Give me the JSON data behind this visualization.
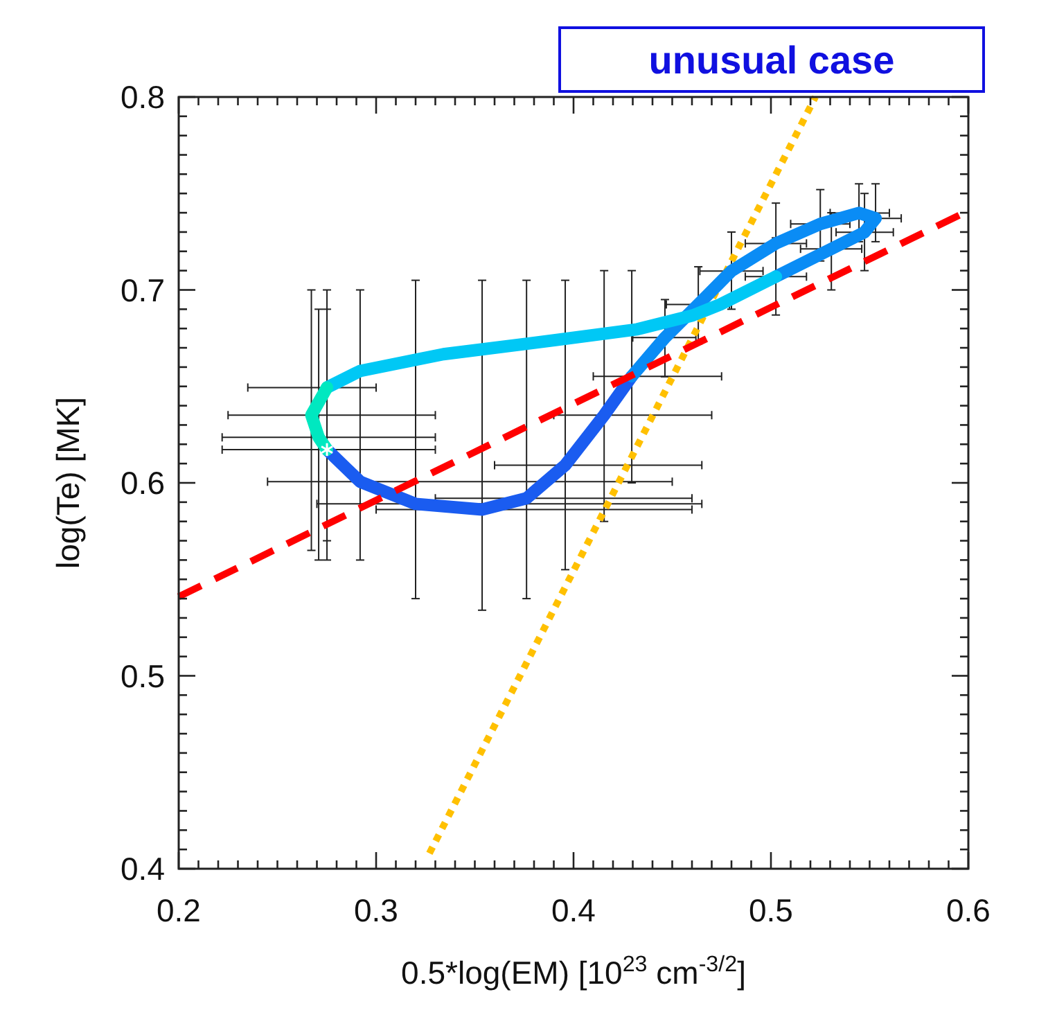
{
  "chart_data": {
    "type": "line",
    "xlabel": "0.5*log(EM) [10$^{23}$ cm$^{-3/2}$]",
    "ylabel": "log(Te) [MK]",
    "annotations": [
      "unusual case"
    ],
    "xlim": [
      0.2,
      0.6
    ],
    "ylim": [
      0.4,
      0.8
    ],
    "xticks": [
      0.2,
      {
        "value": 0.21,
        "label": null
      },
      {
        "value": 0.22,
        "label": null
      },
      {
        "value": 0.23,
        "label": null
      },
      {
        "value": 0.24,
        "label": null
      },
      {
        "value": 0.25,
        "label": null
      },
      {
        "value": 0.26,
        "label": null
      },
      {
        "value": 0.27,
        "label": null
      },
      {
        "value": 0.28,
        "label": null
      },
      {
        "value": 0.29,
        "label": null
      },
      0.3,
      {
        "value": 0.31,
        "label": null
      },
      {
        "value": 0.32,
        "label": null
      },
      {
        "value": 0.33,
        "label": null
      },
      {
        "value": 0.34,
        "label": null
      },
      {
        "value": 0.35,
        "label": null
      },
      {
        "value": 0.36,
        "label": null
      },
      {
        "value": 0.37,
        "label": null
      },
      {
        "value": 0.38,
        "label": null
      },
      {
        "value": 0.39,
        "label": null
      },
      0.4,
      {
        "value": 0.41,
        "label": null
      },
      {
        "value": 0.42,
        "label": null
      },
      {
        "value": 0.43,
        "label": null
      },
      {
        "value": 0.44,
        "label": null
      },
      {
        "value": 0.45,
        "label": null
      },
      {
        "value": 0.46,
        "label": null
      },
      {
        "value": 0.47,
        "label": null
      },
      {
        "value": 0.48,
        "label": null
      },
      {
        "value": 0.49,
        "label": null
      },
      0.5,
      {
        "value": 0.51,
        "label": null
      },
      {
        "value": 0.52,
        "label": null
      },
      {
        "value": 0.53,
        "label": null
      },
      {
        "value": 0.54,
        "label": null
      },
      {
        "value": 0.55,
        "label": null
      },
      {
        "value": 0.56,
        "label": null
      },
      {
        "value": 0.57,
        "label": null
      },
      {
        "value": 0.58,
        "label": null
      },
      {
        "value": 0.59,
        "label": null
      },
      0.6
    ],
    "yticks": [
      0.4,
      {
        "value": 0.41,
        "label": null
      },
      {
        "value": 0.42,
        "label": null
      },
      {
        "value": 0.43,
        "label": null
      },
      {
        "value": 0.44,
        "label": null
      },
      {
        "value": 0.45,
        "label": null
      },
      {
        "value": 0.46,
        "label": null
      },
      {
        "value": 0.47,
        "label": null
      },
      {
        "value": 0.48,
        "label": null
      },
      {
        "value": 0.49,
        "label": null
      },
      0.5,
      {
        "value": 0.51,
        "label": null
      },
      {
        "value": 0.52,
        "label": null
      },
      {
        "value": 0.53,
        "label": null
      },
      {
        "value": 0.54,
        "label": null
      },
      {
        "value": 0.55,
        "label": null
      },
      {
        "value": 0.56,
        "label": null
      },
      {
        "value": 0.57,
        "label": null
      },
      {
        "value": 0.58,
        "label": null
      },
      {
        "value": 0.59,
        "label": null
      },
      0.6,
      {
        "value": 0.61,
        "label": null
      },
      {
        "value": 0.62,
        "label": null
      },
      {
        "value": 0.63,
        "label": null
      },
      {
        "value": 0.64,
        "label": null
      },
      {
        "value": 0.65,
        "label": null
      },
      {
        "value": 0.66,
        "label": null
      },
      {
        "value": 0.67,
        "label": null
      },
      {
        "value": 0.68,
        "label": null
      },
      {
        "value": 0.69,
        "label": null
      },
      0.7,
      {
        "value": 0.71,
        "label": null
      },
      {
        "value": 0.72,
        "label": null
      },
      {
        "value": 0.73,
        "label": null
      },
      {
        "value": 0.74,
        "label": null
      },
      {
        "value": 0.75,
        "label": null
      },
      {
        "value": 0.76,
        "label": null
      },
      {
        "value": 0.77,
        "label": null
      },
      {
        "value": 0.78,
        "label": null
      },
      {
        "value": 0.79,
        "label": null
      },
      0.8
    ],
    "grid": false,
    "series": [
      {
        "color": "#ffc000",
        "line_style": "dotted",
        "x": [
          0.327,
          0.5225
        ],
        "values": [
          0.408,
          0.8
        ]
      },
      {
        "color": "#1a5cf0",
        "line_style": "solid",
        "x": [
          0.2751,
          0.2919,
          0.32,
          0.3537,
          0.3762,
          0.3958,
          0.4155,
          0.4295
        ],
        "values": [
          0.6172,
          0.6006,
          0.5891,
          0.5862,
          0.592,
          0.6092,
          0.6351,
          0.6552
        ],
        "errors": [
          null,
          [
            0.56,
            0.7
          ],
          [
            0.54,
            0.705
          ],
          [
            0.534,
            0.705
          ],
          [
            0.54,
            0.705
          ],
          [
            0.555,
            0.705
          ],
          [
            0.58,
            0.71
          ],
          [
            0.6,
            0.71
          ]
        ],
        "xerrors": [
          null,
          [
            0.245,
            0.45
          ],
          [
            0.27,
            0.465
          ],
          [
            0.3,
            0.46
          ],
          [
            0.33,
            0.46
          ],
          [
            0.36,
            0.465
          ],
          [
            0.39,
            0.47
          ],
          [
            0.41,
            0.475
          ]
        ]
      },
      {
        "color": "#0a8cf5",
        "line_style": "solid",
        "x": [
          0.4295,
          0.4463,
          0.4632,
          0.48,
          0.5025,
          0.525,
          0.5446,
          0.553,
          0.5474,
          0.5306,
          0.5025
        ],
        "values": [
          0.6552,
          0.6753,
          0.6925,
          0.7098,
          0.7241,
          0.7342,
          0.7399,
          0.7371,
          0.7299,
          0.7213,
          0.7069
        ],
        "errors": [
          null,
          [
            0.655,
            0.695
          ],
          [
            0.672,
            0.712
          ],
          [
            0.69,
            0.73
          ],
          [
            0.705,
            0.745
          ],
          [
            0.715,
            0.752
          ],
          [
            0.725,
            0.755
          ],
          [
            0.725,
            0.755
          ],
          [
            0.71,
            0.75
          ],
          [
            0.7,
            0.74
          ],
          [
            0.687,
            0.727
          ]
        ],
        "xerrors": [
          null,
          [
            0.43,
            0.462
          ],
          [
            0.447,
            0.479
          ],
          [
            0.464,
            0.496
          ],
          [
            0.487,
            0.518
          ],
          [
            0.51,
            0.54
          ],
          [
            0.53,
            0.56
          ],
          [
            0.54,
            0.566
          ],
          [
            0.533,
            0.562
          ],
          [
            0.515,
            0.546
          ],
          [
            0.487,
            0.518
          ]
        ]
      },
      {
        "color": "#00c8f5",
        "line_style": "solid",
        "x": [
          0.5025,
          0.4744,
          0.4604,
          0.4323,
          0.3902,
          0.3341,
          0.2919,
          0.2751
        ],
        "values": [
          0.7069,
          0.6925,
          0.6868,
          0.6796,
          0.6739,
          0.6667,
          0.658,
          0.6494
        ]
      },
      {
        "color": "#00e8c0",
        "line_style": "solid",
        "x": [
          0.2751,
          0.2672,
          0.2709,
          0.2751
        ],
        "values": [
          0.6494,
          0.6351,
          0.6236,
          0.6172
        ],
        "errors": [
          [
            0.57,
            0.7
          ],
          [
            0.565,
            0.7
          ],
          [
            0.56,
            0.69
          ],
          [
            0.56,
            0.69
          ]
        ],
        "xerrors": [
          [
            0.235,
            0.3
          ],
          [
            0.225,
            0.33
          ],
          [
            0.222,
            0.33
          ],
          [
            0.222,
            0.33
          ]
        ]
      },
      {
        "color": "#ff0000",
        "line_style": "dashed",
        "x": [
          0.2,
          0.6
        ],
        "values": [
          0.541,
          0.741
        ]
      },
      {
        "type": "scatter",
        "color": "#ffffff",
        "marker": "cross",
        "x": [
          0.2751
        ],
        "values": [
          0.6172
        ]
      }
    ]
  }
}
